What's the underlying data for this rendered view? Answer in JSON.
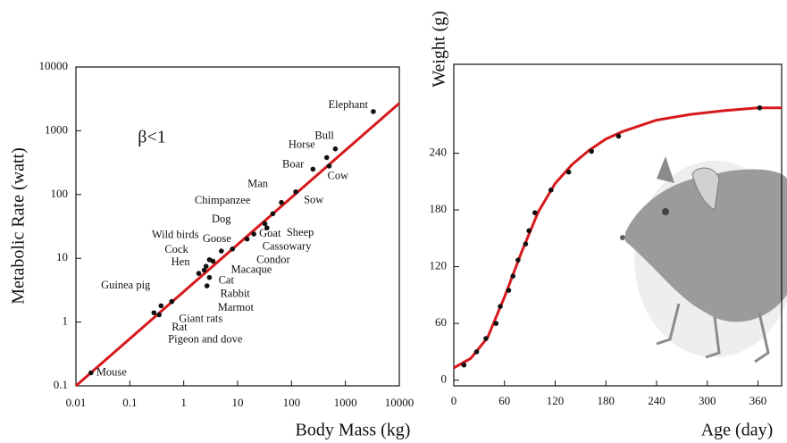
{
  "chart_data": [
    {
      "type": "scatter",
      "x_label": "Body Mass (kg)",
      "y_label": "Metabolic Rate (watt)",
      "annotation": "β<1",
      "xscale": "log",
      "yscale": "log",
      "xlim": [
        0.01,
        10000
      ],
      "ylim": [
        0.1,
        10000
      ],
      "xticks": [
        0.01,
        0.1,
        1,
        10,
        100,
        1000,
        10000
      ],
      "yticks": [
        0.1,
        1,
        10,
        100,
        1000,
        10000
      ],
      "color": "#111111",
      "points": {
        "labels": [
          "Mouse",
          "Rat",
          "Pigeon and dove",
          "Guinea pig",
          "Giant rats",
          "Marmot",
          "Rabbit",
          "Cat",
          "Macaque",
          "Hen",
          "Cock",
          "Wild birds",
          "Goose",
          "Condor",
          "Cassowary",
          "Goat",
          "Sheep",
          "Dog",
          "Chimpanzee",
          "Man",
          "Sow",
          "Boar",
          "Cow",
          "Horse",
          "Bull",
          "Elephant"
        ],
        "x": [
          0.019,
          0.28,
          0.35,
          0.38,
          0.6,
          2.7,
          3,
          2.4,
          3.5,
          1.9,
          2.6,
          3,
          5,
          8,
          15,
          20,
          35,
          32,
          45,
          65,
          120,
          250,
          500,
          450,
          650,
          3300
        ],
        "values": [
          0.16,
          1.4,
          1.3,
          1.8,
          2.1,
          3.7,
          5,
          6.5,
          9,
          5.8,
          7.5,
          9.5,
          13,
          14,
          20,
          24,
          30,
          35,
          50,
          75,
          110,
          250,
          280,
          380,
          520,
          2000
        ]
      },
      "fit": {
        "color": "#d7191c",
        "x": [
          0.01,
          10000
        ],
        "values": [
          0.1,
          2700
        ]
      }
    },
    {
      "type": "curve",
      "x_label": "Age (day)",
      "y_label": "Weight (g)",
      "xlim": [
        0,
        388
      ],
      "ylim": [
        -6,
        334
      ],
      "xticks": [
        0,
        60,
        120,
        180,
        240,
        300,
        360
      ],
      "yticks": [
        0,
        60,
        120,
        180,
        240
      ],
      "color": "#111111",
      "points": {
        "x": [
          12,
          27,
          38,
          50,
          55,
          65,
          70,
          76,
          85,
          89,
          96,
          115,
          136,
          163,
          195,
          362
        ],
        "values": [
          16,
          30,
          44,
          60,
          78,
          95,
          110,
          127,
          144,
          158,
          177,
          201,
          220,
          242,
          258,
          288
        ]
      },
      "fit": {
        "color": "#d7191c",
        "x": [
          0,
          20,
          40,
          60,
          80,
          100,
          120,
          140,
          160,
          180,
          200,
          240,
          280,
          320,
          360,
          388
        ],
        "values": [
          13,
          23,
          45,
          88,
          135,
          178,
          208,
          228,
          243,
          255,
          263,
          275,
          281,
          285,
          288,
          288
        ]
      }
    }
  ]
}
